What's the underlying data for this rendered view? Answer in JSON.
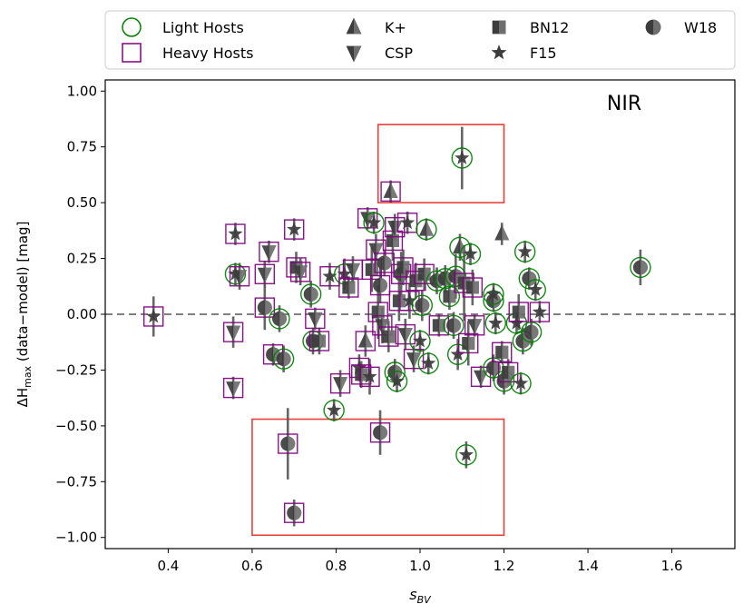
{
  "chart_data": {
    "type": "scatter",
    "title": "",
    "panel_label": "NIR",
    "xlabel": "s",
    "xlabel_sub": "BV",
    "ylabel_prefix": "ΔH",
    "ylabel_sub": "max",
    "ylabel_suffix": " (data−model) [mag]",
    "xlim": [
      0.25,
      1.75
    ],
    "ylim": [
      -1.05,
      1.05
    ],
    "xticks": [
      0.4,
      0.6,
      0.8,
      1.0,
      1.2,
      1.4,
      1.6
    ],
    "xtick_labels": [
      "0.4",
      "0.6",
      "0.8",
      "1.0",
      "1.2",
      "1.4",
      "1.6"
    ],
    "yticks": [
      1.0,
      0.75,
      0.5,
      0.25,
      0.0,
      -0.25,
      -0.5,
      -0.75,
      -1.0
    ],
    "ytick_labels": [
      "1.00",
      "0.75",
      "0.50",
      "0.25",
      "0.00",
      "−0.25",
      "−0.50",
      "−0.75",
      "−1.00"
    ],
    "reference_line": 0.0,
    "grid": false,
    "legend_position": "top",
    "legend": [
      {
        "label": "Light Hosts",
        "marker": "circle-open",
        "color": "#008000"
      },
      {
        "label": "Heavy Hosts",
        "marker": "square-open",
        "color": "#800080"
      },
      {
        "label": "K+",
        "marker": "triangle-up"
      },
      {
        "label": "CSP",
        "marker": "triangle-down"
      },
      {
        "label": "BN12",
        "marker": "square-half"
      },
      {
        "label": "F15",
        "marker": "star"
      },
      {
        "label": "W18",
        "marker": "circle-half"
      }
    ],
    "highlight_boxes": [
      {
        "x0": 0.9,
        "x1": 1.2,
        "y0": 0.5,
        "y1": 0.85,
        "color": "#e8403a"
      },
      {
        "x0": 0.6,
        "x1": 1.2,
        "y0": -0.99,
        "y1": -0.47,
        "color": "#e8403a"
      }
    ],
    "colors": {
      "light_host": "#008000",
      "heavy_host": "#800080",
      "marker_fill": "#3c3c3c",
      "error_bar": "#555555",
      "reference": "#808080",
      "box": "#e8403a"
    },
    "points": [
      {
        "x": 0.365,
        "y": -0.01,
        "err": 0.09,
        "s": "F15",
        "h": "heavy"
      },
      {
        "x": 0.555,
        "y": -0.33,
        "err": 0.05,
        "s": "CSP",
        "h": "heavy"
      },
      {
        "x": 0.555,
        "y": -0.08,
        "err": 0.07,
        "s": "CSP",
        "h": "heavy"
      },
      {
        "x": 0.56,
        "y": 0.36,
        "err": 0.05,
        "s": "F15",
        "h": "heavy"
      },
      {
        "x": 0.56,
        "y": 0.18,
        "err": 0.05,
        "s": "F15",
        "h": "light"
      },
      {
        "x": 0.57,
        "y": 0.17,
        "err": 0.06,
        "s": "CSP",
        "h": "heavy"
      },
      {
        "x": 0.63,
        "y": 0.18,
        "err": 0.06,
        "s": "CSP",
        "h": "heavy"
      },
      {
        "x": 0.64,
        "y": 0.28,
        "err": 0.05,
        "s": "CSP",
        "h": "heavy"
      },
      {
        "x": 0.63,
        "y": 0.03,
        "err": 0.1,
        "s": "W18",
        "h": "heavy"
      },
      {
        "x": 0.65,
        "y": -0.18,
        "err": 0.05,
        "s": "W18",
        "h": "heavy"
      },
      {
        "x": 0.665,
        "y": -0.02,
        "err": 0.06,
        "s": "W18",
        "h": "light"
      },
      {
        "x": 0.675,
        "y": -0.2,
        "err": 0.06,
        "s": "W18",
        "h": "light"
      },
      {
        "x": 0.685,
        "y": -0.58,
        "err": 0.16,
        "s": "W18",
        "h": "heavy"
      },
      {
        "x": 0.7,
        "y": -0.89,
        "err": 0.06,
        "s": "W18",
        "h": "heavy"
      },
      {
        "x": 0.7,
        "y": 0.38,
        "err": 0.05,
        "s": "F15",
        "h": "heavy"
      },
      {
        "x": 0.705,
        "y": 0.21,
        "err": 0.07,
        "s": "BN12",
        "h": "heavy"
      },
      {
        "x": 0.715,
        "y": 0.19,
        "err": 0.06,
        "s": "CSP",
        "h": "heavy"
      },
      {
        "x": 0.74,
        "y": 0.09,
        "err": 0.06,
        "s": "W18",
        "h": "light"
      },
      {
        "x": 0.745,
        "y": -0.12,
        "err": 0.06,
        "s": "W18",
        "h": "light"
      },
      {
        "x": 0.75,
        "y": -0.02,
        "err": 0.05,
        "s": "CSP",
        "h": "heavy"
      },
      {
        "x": 0.76,
        "y": -0.12,
        "err": 0.06,
        "s": "BN12",
        "h": "heavy"
      },
      {
        "x": 0.785,
        "y": 0.17,
        "err": 0.06,
        "s": "F15",
        "h": "heavy"
      },
      {
        "x": 0.795,
        "y": -0.43,
        "err": 0.05,
        "s": "F15",
        "h": "light"
      },
      {
        "x": 0.81,
        "y": -0.31,
        "err": 0.06,
        "s": "CSP",
        "h": "heavy"
      },
      {
        "x": 0.82,
        "y": 0.18,
        "err": 0.07,
        "s": "F15",
        "h": "light"
      },
      {
        "x": 0.83,
        "y": 0.12,
        "err": 0.05,
        "s": "BN12",
        "h": "heavy"
      },
      {
        "x": 0.84,
        "y": 0.2,
        "err": 0.06,
        "s": "CSP",
        "h": "heavy"
      },
      {
        "x": 0.855,
        "y": -0.24,
        "err": 0.06,
        "s": "F15",
        "h": "heavy"
      },
      {
        "x": 0.86,
        "y": -0.27,
        "err": 0.06,
        "s": "BN12",
        "h": "heavy"
      },
      {
        "x": 0.87,
        "y": -0.12,
        "err": 0.07,
        "s": "K+",
        "h": "heavy"
      },
      {
        "x": 0.88,
        "y": -0.28,
        "err": 0.08,
        "s": "F15",
        "h": "heavy"
      },
      {
        "x": 0.875,
        "y": 0.43,
        "err": 0.05,
        "s": "CSP",
        "h": "heavy"
      },
      {
        "x": 0.89,
        "y": 0.41,
        "err": 0.05,
        "s": "F15",
        "h": "light"
      },
      {
        "x": 0.885,
        "y": 0.2,
        "err": 0.1,
        "s": "BN12",
        "h": "heavy"
      },
      {
        "x": 0.895,
        "y": 0.29,
        "err": 0.07,
        "s": "CSP",
        "h": "heavy"
      },
      {
        "x": 0.905,
        "y": 0.13,
        "err": 0.08,
        "s": "W18",
        "h": "heavy"
      },
      {
        "x": 0.9,
        "y": 0.01,
        "err": 0.12,
        "s": "BN12",
        "h": "heavy"
      },
      {
        "x": 0.91,
        "y": -0.05,
        "err": 0.08,
        "s": "CSP",
        "h": "heavy"
      },
      {
        "x": 0.915,
        "y": 0.23,
        "err": 0.06,
        "s": "W18",
        "h": "heavy"
      },
      {
        "x": 0.905,
        "y": -0.53,
        "err": 0.1,
        "s": "W18",
        "h": "heavy"
      },
      {
        "x": 0.925,
        "y": -0.1,
        "err": 0.07,
        "s": "BN12",
        "h": "heavy"
      },
      {
        "x": 0.93,
        "y": 0.55,
        "err": 0.05,
        "s": "K+",
        "h": "heavy"
      },
      {
        "x": 0.935,
        "y": 0.33,
        "err": 0.09,
        "s": "BN12",
        "h": "heavy"
      },
      {
        "x": 0.94,
        "y": 0.39,
        "err": 0.06,
        "s": "CSP",
        "h": "heavy"
      },
      {
        "x": 0.94,
        "y": -0.26,
        "err": 0.06,
        "s": "W18",
        "h": "light"
      },
      {
        "x": 0.945,
        "y": -0.3,
        "err": 0.05,
        "s": "F15",
        "h": "light"
      },
      {
        "x": 0.95,
        "y": 0.06,
        "err": 0.09,
        "s": "BN12",
        "h": "heavy"
      },
      {
        "x": 0.955,
        "y": 0.18,
        "err": 0.1,
        "s": "W18",
        "h": "heavy"
      },
      {
        "x": 0.96,
        "y": 0.21,
        "err": 0.08,
        "s": "BN12",
        "h": "heavy"
      },
      {
        "x": 0.965,
        "y": -0.09,
        "err": 0.07,
        "s": "CSP",
        "h": "heavy"
      },
      {
        "x": 0.97,
        "y": 0.41,
        "err": 0.05,
        "s": "F15",
        "h": "heavy"
      },
      {
        "x": 0.975,
        "y": 0.06,
        "err": 0.08,
        "s": "F15",
        "h": "heavy"
      },
      {
        "x": 0.985,
        "y": -0.2,
        "err": 0.06,
        "s": "CSP",
        "h": "heavy"
      },
      {
        "x": 0.99,
        "y": 0.15,
        "err": 0.08,
        "s": "BN12",
        "h": "heavy"
      },
      {
        "x": 1.0,
        "y": -0.12,
        "err": 0.05,
        "s": "F15",
        "h": "light"
      },
      {
        "x": 1.005,
        "y": 0.04,
        "err": 0.07,
        "s": "W18",
        "h": "light"
      },
      {
        "x": 1.01,
        "y": 0.18,
        "err": 0.07,
        "s": "BN12",
        "h": "heavy"
      },
      {
        "x": 1.015,
        "y": 0.38,
        "err": 0.05,
        "s": "K+",
        "h": "light"
      },
      {
        "x": 1.02,
        "y": -0.22,
        "err": 0.05,
        "s": "F15",
        "h": "light"
      },
      {
        "x": 1.04,
        "y": 0.15,
        "err": 0.06,
        "s": "W18",
        "h": "light"
      },
      {
        "x": 1.045,
        "y": -0.05,
        "err": 0.05,
        "s": "BN12",
        "h": "heavy"
      },
      {
        "x": 1.06,
        "y": 0.16,
        "err": 0.06,
        "s": "W18",
        "h": "light"
      },
      {
        "x": 1.07,
        "y": 0.08,
        "err": 0.06,
        "s": "BN12",
        "h": "light"
      },
      {
        "x": 1.08,
        "y": -0.05,
        "err": 0.06,
        "s": "W18",
        "h": "light"
      },
      {
        "x": 1.085,
        "y": 0.17,
        "err": 0.1,
        "s": "W18",
        "h": "light"
      },
      {
        "x": 1.09,
        "y": -0.18,
        "err": 0.07,
        "s": "F15",
        "h": "light"
      },
      {
        "x": 1.095,
        "y": 0.3,
        "err": 0.06,
        "s": "K+",
        "h": "light"
      },
      {
        "x": 1.1,
        "y": 0.7,
        "err": 0.14,
        "s": "F15",
        "h": "light"
      },
      {
        "x": 1.105,
        "y": 0.14,
        "err": 0.17,
        "s": "BN12",
        "h": "heavy"
      },
      {
        "x": 1.11,
        "y": -0.63,
        "err": 0.06,
        "s": "F15",
        "h": "light"
      },
      {
        "x": 1.115,
        "y": -0.13,
        "err": 0.1,
        "s": "BN12",
        "h": "heavy"
      },
      {
        "x": 1.12,
        "y": 0.27,
        "err": 0.05,
        "s": "F15",
        "h": "light"
      },
      {
        "x": 1.125,
        "y": 0.12,
        "err": 0.08,
        "s": "BN12",
        "h": "heavy"
      },
      {
        "x": 1.13,
        "y": -0.05,
        "err": 0.05,
        "s": "CSP",
        "h": "heavy"
      },
      {
        "x": 1.145,
        "y": -0.28,
        "err": 0.05,
        "s": "CSP",
        "h": "heavy"
      },
      {
        "x": 1.175,
        "y": 0.06,
        "err": 0.05,
        "s": "W18",
        "h": "light"
      },
      {
        "x": 1.175,
        "y": -0.24,
        "err": 0.06,
        "s": "W18",
        "h": "light"
      },
      {
        "x": 1.175,
        "y": 0.09,
        "err": 0.05,
        "s": "F15",
        "h": "light"
      },
      {
        "x": 1.18,
        "y": -0.04,
        "err": 0.05,
        "s": "F15",
        "h": "light"
      },
      {
        "x": 1.195,
        "y": -0.17,
        "err": 0.05,
        "s": "BN12",
        "h": "heavy"
      },
      {
        "x": 1.2,
        "y": -0.3,
        "err": 0.06,
        "s": "W18",
        "h": "light"
      },
      {
        "x": 1.21,
        "y": -0.26,
        "err": 0.06,
        "s": "BN12",
        "h": "heavy"
      },
      {
        "x": 1.23,
        "y": -0.04,
        "err": 0.05,
        "s": "F15",
        "h": "light"
      },
      {
        "x": 1.235,
        "y": 0.01,
        "err": 0.08,
        "s": "BN12",
        "h": "heavy"
      },
      {
        "x": 1.24,
        "y": -0.31,
        "err": 0.05,
        "s": "F15",
        "h": "light"
      },
      {
        "x": 1.245,
        "y": -0.12,
        "err": 0.06,
        "s": "W18",
        "h": "light"
      },
      {
        "x": 1.25,
        "y": 0.28,
        "err": 0.05,
        "s": "F15",
        "h": "light"
      },
      {
        "x": 1.26,
        "y": 0.16,
        "err": 0.05,
        "s": "W18",
        "h": "light"
      },
      {
        "x": 1.265,
        "y": -0.08,
        "err": 0.06,
        "s": "W18",
        "h": "light"
      },
      {
        "x": 1.275,
        "y": 0.11,
        "err": 0.05,
        "s": "F15",
        "h": "light"
      },
      {
        "x": 1.285,
        "y": 0.01,
        "err": 0.05,
        "s": "F15",
        "h": "heavy"
      },
      {
        "x": 1.195,
        "y": 0.36,
        "err": 0.05,
        "s": "K+",
        "h": "none"
      },
      {
        "x": 1.525,
        "y": 0.21,
        "err": 0.08,
        "s": "W18",
        "h": "light"
      }
    ]
  }
}
